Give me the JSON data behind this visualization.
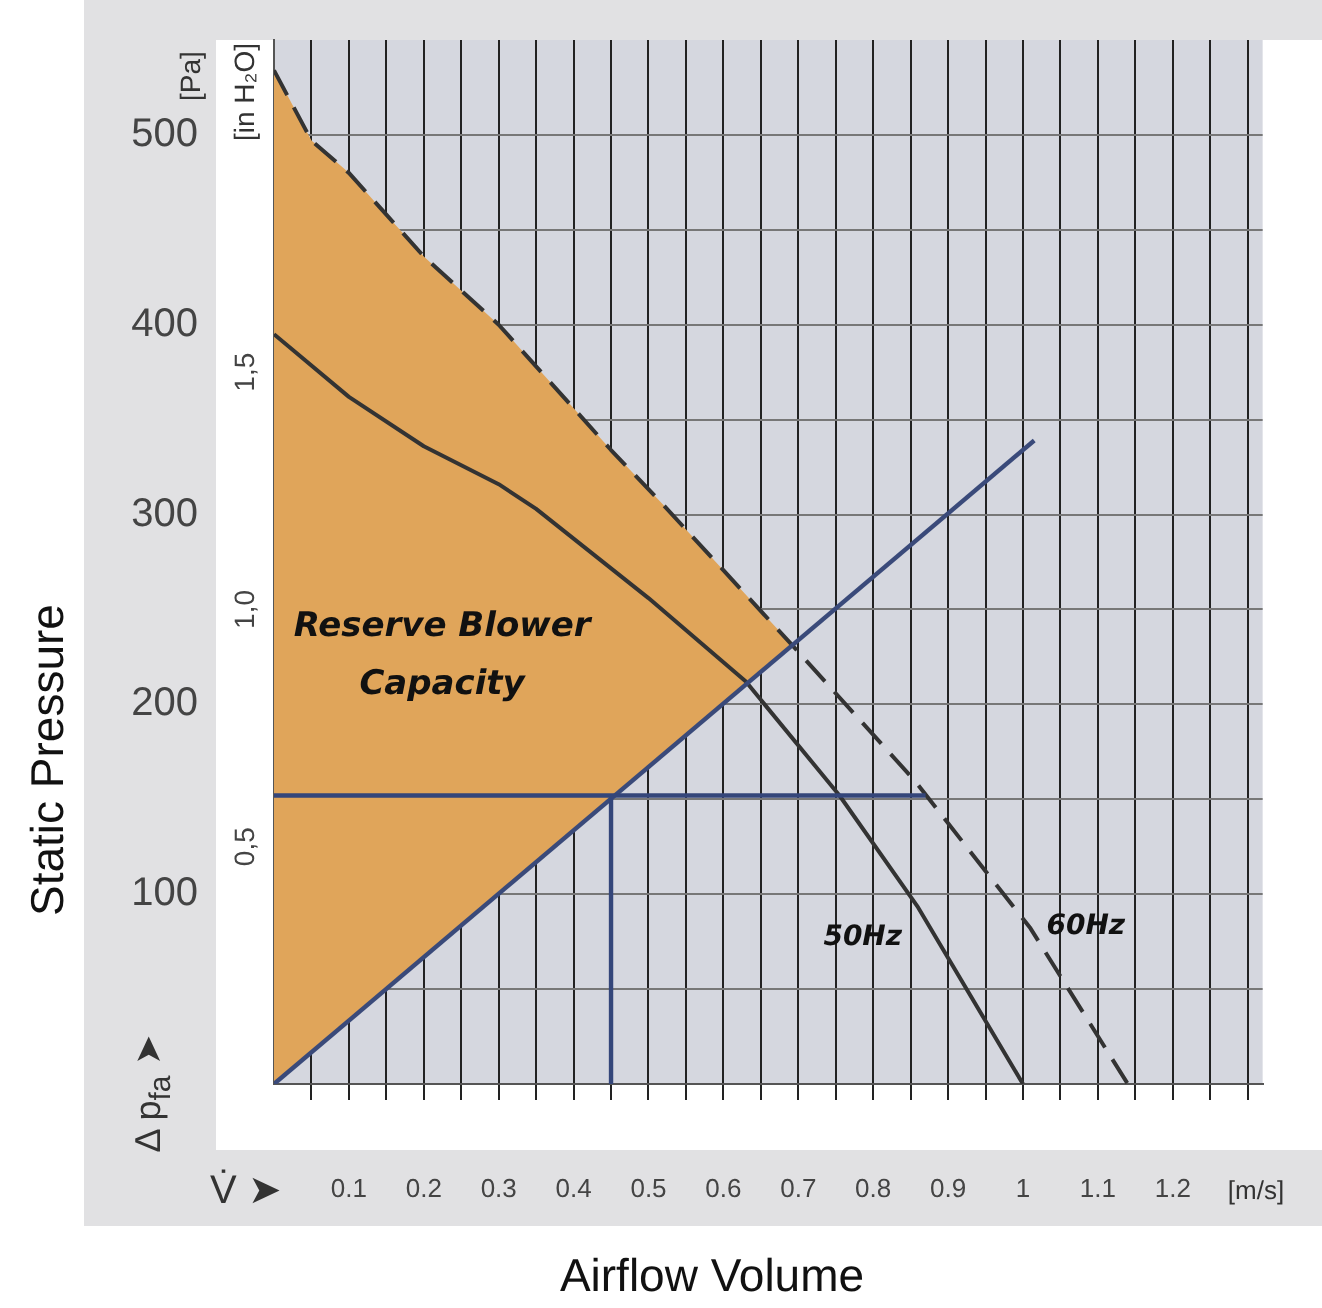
{
  "chart_data": {
    "type": "line",
    "xlabel": "Airflow Volume",
    "ylabel": "Static Pressure",
    "annotations": [
      "[Pa]",
      "[in H₂O]",
      "Δ p$_{fa}$ ➤",
      "V̇ ➤",
      "[m/s]"
    ],
    "xlim": [
      0,
      1.32
    ],
    "xticks": [
      {
        "value": 0.05,
        "label": null
      },
      0.1,
      {
        "value": 0.15,
        "label": null
      },
      0.2,
      {
        "value": 0.25,
        "label": null
      },
      0.3,
      {
        "value": 0.35,
        "label": null
      },
      0.4,
      {
        "value": 0.45,
        "label": null
      },
      0.5,
      {
        "value": 0.55,
        "label": null
      },
      0.6,
      {
        "value": 0.65,
        "label": null
      },
      0.7,
      {
        "value": 0.75,
        "label": null
      },
      0.8,
      {
        "value": 0.85,
        "label": null
      },
      0.9,
      {
        "value": 0.95,
        "label": null
      },
      {
        "value": 1,
        "label": "1"
      },
      {
        "value": 1.05,
        "label": null
      },
      1.1,
      {
        "value": 1.15,
        "label": null
      },
      1.2,
      {
        "value": 1.25,
        "label": null
      },
      {
        "value": 1.3,
        "label": null
      }
    ],
    "ylim": [
      0,
      550
    ],
    "yticks": [
      {
        "value": 50,
        "label": null
      },
      100,
      {
        "value": 150,
        "label": null
      },
      200,
      {
        "value": 250,
        "label": null
      },
      300,
      {
        "value": 350,
        "label": null
      },
      400,
      {
        "value": 450,
        "label": null
      },
      500
    ],
    "y2lim": [
      0,
      2.2
    ],
    "y2ticks": [
      {
        "value": 0.5,
        "label": "0,5"
      },
      {
        "value": 1,
        "label": "1,0"
      },
      {
        "value": 1.5,
        "label": "1,5"
      }
    ],
    "grid": true,
    "legend": false,
    "marker": "none",
    "series": [
      {
        "name": "Reserve Blower Capacity",
        "type": "area",
        "color": "#e0a55a",
        "x": [
          0,
          0.05,
          0.1,
          0.15,
          0.2,
          0.3,
          0.45,
          0.52,
          0.69
        ],
        "values": [
          534,
          497,
          480,
          458,
          436,
          400,
          334,
          305,
          232
        ]
      },
      {
        "name": "60Hz",
        "color": "#333333",
        "line_style": "dashed",
        "x": [
          0,
          0.05,
          0.1,
          0.15,
          0.2,
          0.3,
          0.45,
          0.52,
          0.69,
          0.855,
          1.01,
          1.14
        ],
        "values": [
          534,
          497,
          480,
          458,
          436,
          400,
          334,
          305,
          232,
          160,
          82,
          0
        ]
      },
      {
        "name": "50Hz",
        "color": "#333333",
        "line_style": "solid",
        "x": [
          0,
          0.1,
          0.2,
          0.3,
          0.35,
          0.5,
          0.63,
          0.755,
          0.86,
          1
        ],
        "values": [
          395,
          362,
          336,
          316,
          303,
          256,
          212,
          152,
          93,
          0
        ]
      },
      {
        "color": "#3a4a7a",
        "line_style": "solid",
        "x": [
          0,
          1.015
        ],
        "values": [
          0,
          339
        ]
      },
      {
        "color": "#34467a",
        "line_style": "solid",
        "x": [
          0,
          0.87
        ],
        "values": [
          152,
          152
        ]
      },
      {
        "color": "#34467a",
        "line_style": "solid",
        "x": [
          0.45,
          0.45
        ],
        "values": [
          0,
          152
        ]
      }
    ]
  }
}
